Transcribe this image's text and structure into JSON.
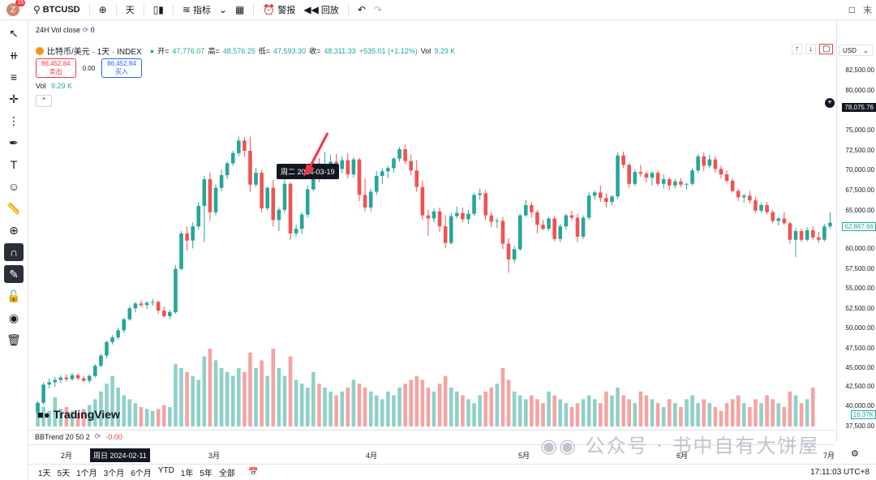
{
  "topbar": {
    "avatar_letter": "Z",
    "avatar_badge": "15",
    "symbol": "BTCUSD",
    "interval": "天",
    "indicators": "指标",
    "alert": "警报",
    "replay": "回放",
    "right_cut": "末"
  },
  "legend": {
    "line1": "24H Vol close",
    "line1_value": "0",
    "title": "比特币/美元 · 1天 · INDEX",
    "open_label": "开=",
    "open": "47,776.07",
    "high_label": "高=",
    "high": "48,576.25",
    "low_label": "低=",
    "low": "47,593.30",
    "close_label": "收=",
    "close": "48,311.33",
    "change": "+535.01 (+1.12%)",
    "vol_label": "Vol",
    "vol_value": "9.29 K",
    "sell_price": "86,452.84",
    "sell_label": "卖出",
    "spread": "0.00",
    "buy_price": "86,452.84",
    "buy_label": "买入",
    "vol_row_label": "Vol",
    "vol_row_value": "9.29 K"
  },
  "tooltip": "周二 2024-03-19",
  "logo_text": "TradingView",
  "price_axis": {
    "currency": "USD",
    "labels": [
      "82,500.00",
      "80,000.00",
      "78,075.76",
      "75,000.00",
      "72,500.00",
      "70,000.00",
      "67,500.00",
      "65,000.00",
      "62,867.66",
      "60,000.00",
      "57,500.00",
      "55,000.00",
      "52,500.00",
      "50,000.00",
      "47,500.00",
      "45,000.00",
      "42,500.00",
      "40,000.00",
      "16.37K",
      "37,500.00"
    ],
    "current_price": "78,075.76",
    "last_price": "62,867.66",
    "vol_badge": "16.37K"
  },
  "indicator": {
    "name": "BBTrend 20 50 2",
    "value": "-0.00"
  },
  "time_axis": {
    "labels": [
      "2月",
      "3月",
      "4月",
      "5月",
      "6月",
      "7月"
    ],
    "crosshair": "周日 2024-02-11"
  },
  "bottombar": {
    "ranges": [
      "1天",
      "5天",
      "1个月",
      "3个月",
      "6个月",
      "YTD",
      "1年",
      "5年",
      "全部"
    ],
    "clock": "17:11:03 UTC+8"
  },
  "watermark": "公众号 · 书中自有大饼屋",
  "colors": {
    "up": "#26a69a",
    "down": "#ef5350",
    "vol_up": "#8fd0c8",
    "vol_down": "#f5a3a3",
    "accent": "#2962ff"
  },
  "chart_data": {
    "type": "candlestick",
    "ylim": [
      37500,
      82500
    ],
    "candles": [
      [
        38800,
        40200,
        38500,
        40000
      ],
      [
        40000,
        42600,
        39800,
        42300
      ],
      [
        42300,
        43100,
        41800,
        42600
      ],
      [
        42600,
        43300,
        42000,
        42900
      ],
      [
        42900,
        43500,
        42500,
        43200
      ],
      [
        43200,
        43600,
        42700,
        43000
      ],
      [
        43000,
        43800,
        42800,
        43500
      ],
      [
        43500,
        43700,
        42900,
        43100
      ],
      [
        43100,
        43400,
        42600,
        42800
      ],
      [
        42800,
        43600,
        42500,
        43400
      ],
      [
        43400,
        44900,
        43200,
        44700
      ],
      [
        44700,
        46200,
        44500,
        46000
      ],
      [
        46000,
        47900,
        45600,
        47700
      ],
      [
        47700,
        48600,
        47400,
        48300
      ],
      [
        48300,
        49500,
        48000,
        49200
      ],
      [
        49200,
        50800,
        48900,
        50600
      ],
      [
        50600,
        52300,
        50400,
        52000
      ],
      [
        52000,
        52800,
        51500,
        52600
      ],
      [
        52600,
        53000,
        52100,
        52400
      ],
      [
        52400,
        52900,
        51900,
        52700
      ],
      [
        52700,
        53200,
        52300,
        52800
      ],
      [
        52800,
        53000,
        51300,
        51700
      ],
      [
        51700,
        52200,
        50800,
        51000
      ],
      [
        51000,
        51800,
        50600,
        51500
      ],
      [
        51500,
        57500,
        51300,
        57000
      ],
      [
        57000,
        61800,
        56800,
        61500
      ],
      [
        61500,
        62400,
        59300,
        60600
      ],
      [
        60600,
        62900,
        59600,
        62400
      ],
      [
        62400,
        65500,
        62000,
        65000
      ],
      [
        65000,
        68800,
        60400,
        68400
      ],
      [
        68400,
        69200,
        63100,
        64200
      ],
      [
        64200,
        67700,
        63800,
        67300
      ],
      [
        67300,
        69600,
        66900,
        68900
      ],
      [
        68900,
        70600,
        68400,
        70400
      ],
      [
        70400,
        72000,
        70100,
        71700
      ],
      [
        71700,
        73800,
        71300,
        73300
      ],
      [
        73300,
        73700,
        71200,
        72000
      ],
      [
        72000,
        73800,
        66800,
        67700
      ],
      [
        67700,
        69800,
        67400,
        69200
      ],
      [
        69200,
        69600,
        64200,
        64700
      ],
      [
        64700,
        67500,
        64400,
        67300
      ],
      [
        67300,
        68300,
        62400,
        63200
      ],
      [
        63200,
        64800,
        61800,
        64500
      ],
      [
        64500,
        68400,
        64100,
        67800
      ],
      [
        67800,
        68000,
        60700,
        61500
      ],
      [
        61500,
        62600,
        61100,
        62100
      ],
      [
        62100,
        64200,
        61400,
        63900
      ],
      [
        63900,
        67600,
        63500,
        67100
      ],
      [
        67100,
        70900,
        66900,
        70400
      ],
      [
        70400,
        71100,
        68000,
        69400
      ],
      [
        69400,
        71800,
        68300,
        70100
      ],
      [
        70100,
        71500,
        69400,
        70600
      ],
      [
        70600,
        71600,
        69800,
        69700
      ],
      [
        69700,
        71300,
        69200,
        70800
      ],
      [
        70800,
        71700,
        68500,
        69000
      ],
      [
        69000,
        71200,
        68600,
        70900
      ],
      [
        70900,
        71100,
        65600,
        66400
      ],
      [
        66400,
        68500,
        64300,
        64800
      ],
      [
        64800,
        67200,
        64300,
        66800
      ],
      [
        66800,
        69400,
        66400,
        68800
      ],
      [
        68800,
        69800,
        67800,
        69400
      ],
      [
        69400,
        70100,
        68500,
        69800
      ],
      [
        69800,
        71200,
        69200,
        71000
      ],
      [
        71000,
        72500,
        70600,
        72200
      ],
      [
        72200,
        72800,
        70300,
        70700
      ],
      [
        70700,
        71500,
        68900,
        69500
      ],
      [
        69500,
        70800,
        66800,
        67400
      ],
      [
        67400,
        68200,
        63200,
        63800
      ],
      [
        63800,
        64500,
        61200,
        63400
      ],
      [
        63400,
        64700,
        62900,
        64300
      ],
      [
        64300,
        64800,
        61700,
        62400
      ],
      [
        62400,
        63800,
        59600,
        60300
      ],
      [
        60300,
        64100,
        60100,
        63700
      ],
      [
        63700,
        64900,
        63400,
        64100
      ],
      [
        64100,
        64800,
        62900,
        63300
      ],
      [
        63300,
        64500,
        62700,
        64000
      ],
      [
        64000,
        66700,
        63700,
        66400
      ],
      [
        66400,
        67200,
        65800,
        66600
      ],
      [
        66600,
        67000,
        63200,
        63800
      ],
      [
        63800,
        64200,
        62300,
        63000
      ],
      [
        63000,
        63500,
        62200,
        63100
      ],
      [
        63100,
        63600,
        59500,
        60200
      ],
      [
        60200,
        60900,
        56500,
        58200
      ],
      [
        58200,
        59900,
        57800,
        59500
      ],
      [
        59500,
        64000,
        59300,
        63800
      ],
      [
        63800,
        65700,
        63600,
        65100
      ],
      [
        65100,
        65500,
        63500,
        64200
      ],
      [
        64200,
        64500,
        61500,
        62600
      ],
      [
        62600,
        63200,
        61900,
        62100
      ],
      [
        62100,
        63600,
        61800,
        63400
      ],
      [
        63400,
        63700,
        60500,
        60800
      ],
      [
        60800,
        62700,
        60400,
        62400
      ],
      [
        62400,
        64000,
        62000,
        63800
      ],
      [
        63800,
        64400,
        63200,
        63500
      ],
      [
        63500,
        64000,
        60400,
        61100
      ],
      [
        61100,
        63800,
        60800,
        63500
      ],
      [
        63500,
        66700,
        63200,
        66300
      ],
      [
        66300,
        67000,
        65800,
        66700
      ],
      [
        66700,
        67600,
        65500,
        66000
      ],
      [
        66000,
        66600,
        64800,
        65500
      ],
      [
        65500,
        66400,
        65100,
        66200
      ],
      [
        66200,
        71800,
        65900,
        71400
      ],
      [
        71400,
        71900,
        69800,
        70200
      ],
      [
        70200,
        70500,
        67300,
        67800
      ],
      [
        67800,
        69600,
        67500,
        69300
      ],
      [
        69300,
        70200,
        68700,
        69100
      ],
      [
        69100,
        69400,
        68000,
        68600
      ],
      [
        68600,
        69400,
        67600,
        69200
      ],
      [
        69200,
        69500,
        67500,
        67800
      ],
      [
        67800,
        69000,
        67200,
        68400
      ],
      [
        68400,
        68600,
        67000,
        67600
      ],
      [
        67600,
        68400,
        67200,
        68100
      ],
      [
        68100,
        68500,
        67400,
        67700
      ],
      [
        67700,
        67900,
        67100,
        67800
      ],
      [
        67800,
        69800,
        67600,
        69500
      ],
      [
        69500,
        71600,
        69200,
        71300
      ],
      [
        71300,
        71800,
        69400,
        70100
      ],
      [
        70100,
        71500,
        69800,
        70900
      ],
      [
        70900,
        71300,
        69200,
        69700
      ],
      [
        69700,
        70100,
        68500,
        69000
      ],
      [
        69000,
        69500,
        67900,
        68200
      ],
      [
        68200,
        68500,
        66700,
        66900
      ],
      [
        66900,
        67200,
        65600,
        66100
      ],
      [
        66100,
        66500,
        65400,
        66300
      ],
      [
        66300,
        66900,
        65300,
        65700
      ],
      [
        65700,
        66100,
        64100,
        64400
      ],
      [
        64400,
        65400,
        64100,
        65100
      ],
      [
        65100,
        65500,
        63900,
        64200
      ],
      [
        64200,
        64500,
        62800,
        63100
      ],
      [
        63100,
        63600,
        62500,
        63400
      ],
      [
        63400,
        64200,
        62600,
        62800
      ],
      [
        62800,
        63000,
        60200,
        60700
      ],
      [
        60700,
        62200,
        58500,
        61800
      ],
      [
        61800,
        62100,
        60400,
        60700
      ],
      [
        60700,
        62300,
        60500,
        61900
      ],
      [
        61900,
        62400,
        60700,
        61000
      ],
      [
        61000,
        61700,
        60300,
        60700
      ],
      [
        60700,
        62700,
        60500,
        62400
      ],
      [
        62400,
        64200,
        62100,
        62867
      ]
    ],
    "volume_k": [
      12,
      10,
      8,
      15,
      9,
      10,
      8,
      7,
      9,
      11,
      14,
      18,
      22,
      26,
      20,
      16,
      14,
      12,
      10,
      9,
      8,
      9,
      11,
      10,
      32,
      30,
      28,
      26,
      24,
      36,
      40,
      34,
      30,
      28,
      26,
      30,
      28,
      38,
      30,
      34,
      26,
      40,
      30,
      26,
      36,
      24,
      22,
      20,
      28,
      22,
      20,
      18,
      16,
      18,
      20,
      24,
      22,
      20,
      18,
      16,
      14,
      18,
      16,
      20,
      22,
      24,
      26,
      24,
      20,
      18,
      22,
      26,
      20,
      18,
      16,
      14,
      12,
      16,
      18,
      20,
      22,
      30,
      24,
      18,
      16,
      14,
      16,
      14,
      12,
      18,
      16,
      14,
      12,
      10,
      12,
      14,
      16,
      14,
      12,
      18,
      16,
      20,
      16,
      14,
      12,
      18,
      16,
      14,
      12,
      10,
      14,
      12,
      10,
      14,
      16,
      12,
      14,
      12,
      10,
      8,
      12,
      14,
      16,
      12,
      10,
      14,
      12,
      16,
      14,
      12,
      10,
      18,
      16,
      12,
      14,
      20
    ]
  }
}
